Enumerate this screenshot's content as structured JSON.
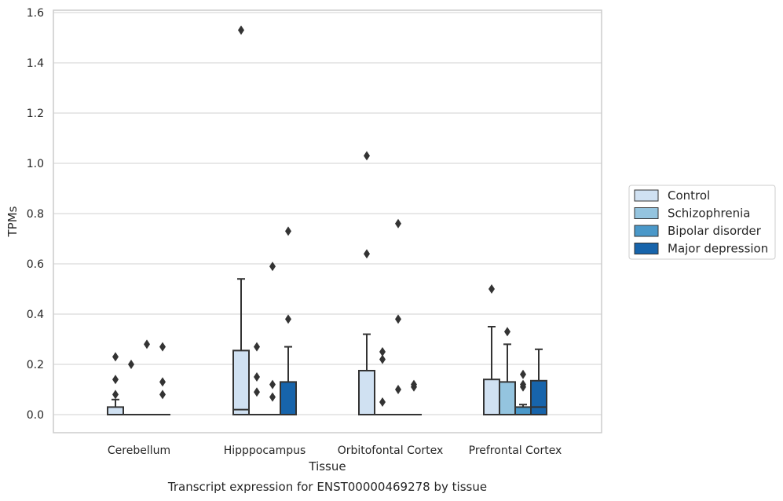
{
  "chart_data": {
    "type": "box",
    "title": "Transcript expression for ENST00000469278 by tissue",
    "xlabel": "Tissue",
    "ylabel": "TPMs",
    "ylim": [
      -0.07,
      1.61
    ],
    "yticks": [
      0.0,
      0.2,
      0.4,
      0.6,
      0.8,
      1.0,
      1.2,
      1.4,
      1.6
    ],
    "ytick_labels": [
      "0.0",
      "0.2",
      "0.4",
      "0.6",
      "0.8",
      "1.0",
      "1.2",
      "1.4",
      "1.6"
    ],
    "grid": true,
    "legend_position": "right",
    "categories": [
      "Cerebellum",
      "Hipppocampus",
      "Orbitofontal Cortex",
      "Prefrontal Cortex"
    ],
    "series": [
      {
        "name": "Control",
        "color": "#d0e1f2",
        "boxes": [
          {
            "q1": 0.0,
            "median": 0.0,
            "q3": 0.03,
            "whisker_low": 0.0,
            "whisker_high": 0.06,
            "outliers": [
              0.08,
              0.14,
              0.23
            ]
          },
          {
            "q1": 0.0,
            "median": 0.02,
            "q3": 0.255,
            "whisker_low": 0.0,
            "whisker_high": 0.54,
            "outliers": [
              1.53
            ]
          },
          {
            "q1": 0.0,
            "median": 0.0,
            "q3": 0.175,
            "whisker_low": 0.0,
            "whisker_high": 0.32,
            "outliers": [
              0.64,
              1.03
            ]
          },
          {
            "q1": 0.0,
            "median": 0.0,
            "q3": 0.14,
            "whisker_low": 0.0,
            "whisker_high": 0.35,
            "outliers": [
              0.5
            ]
          }
        ]
      },
      {
        "name": "Schizophrenia",
        "color": "#94c4df",
        "boxes": [
          {
            "q1": 0.0,
            "median": 0.0,
            "q3": 0.0,
            "whisker_low": 0.0,
            "whisker_high": 0.0,
            "outliers": [
              0.2
            ]
          },
          {
            "q1": 0.0,
            "median": 0.0,
            "q3": 0.0,
            "whisker_low": 0.0,
            "whisker_high": 0.0,
            "outliers": [
              0.09,
              0.15,
              0.27
            ]
          },
          {
            "q1": 0.0,
            "median": 0.0,
            "q3": 0.0,
            "whisker_low": 0.0,
            "whisker_high": 0.0,
            "outliers": [
              0.05,
              0.22,
              0.25
            ]
          },
          {
            "q1": 0.0,
            "median": 0.0,
            "q3": 0.13,
            "whisker_low": 0.0,
            "whisker_high": 0.28,
            "outliers": [
              0.33
            ]
          }
        ]
      },
      {
        "name": "Bipolar disorder",
        "color": "#4a98c9",
        "boxes": [
          {
            "q1": 0.0,
            "median": 0.0,
            "q3": 0.0,
            "whisker_low": 0.0,
            "whisker_high": 0.0,
            "outliers": [
              0.28
            ]
          },
          {
            "q1": 0.0,
            "median": 0.0,
            "q3": 0.0,
            "whisker_low": 0.0,
            "whisker_high": 0.0,
            "outliers": [
              0.07,
              0.12,
              0.59
            ]
          },
          {
            "q1": 0.0,
            "median": 0.0,
            "q3": 0.0,
            "whisker_low": 0.0,
            "whisker_high": 0.0,
            "outliers": [
              0.1,
              0.38,
              0.76
            ]
          },
          {
            "q1": 0.0,
            "median": 0.0,
            "q3": 0.03,
            "whisker_low": 0.0,
            "whisker_high": 0.04,
            "outliers": [
              0.11,
              0.12,
              0.16
            ]
          }
        ]
      },
      {
        "name": "Major depression",
        "color": "#1764ab",
        "boxes": [
          {
            "q1": 0.0,
            "median": 0.0,
            "q3": 0.0,
            "whisker_low": 0.0,
            "whisker_high": 0.0,
            "outliers": [
              0.08,
              0.13,
              0.27
            ]
          },
          {
            "q1": 0.0,
            "median": 0.0,
            "q3": 0.13,
            "whisker_low": 0.0,
            "whisker_high": 0.27,
            "outliers": [
              0.38,
              0.73
            ]
          },
          {
            "q1": 0.0,
            "median": 0.0,
            "q3": 0.0,
            "whisker_low": 0.0,
            "whisker_high": 0.0,
            "outliers": [
              0.11,
              0.12
            ]
          },
          {
            "q1": 0.0,
            "median": 0.03,
            "q3": 0.135,
            "whisker_low": 0.0,
            "whisker_high": 0.26,
            "outliers": []
          }
        ]
      }
    ]
  }
}
